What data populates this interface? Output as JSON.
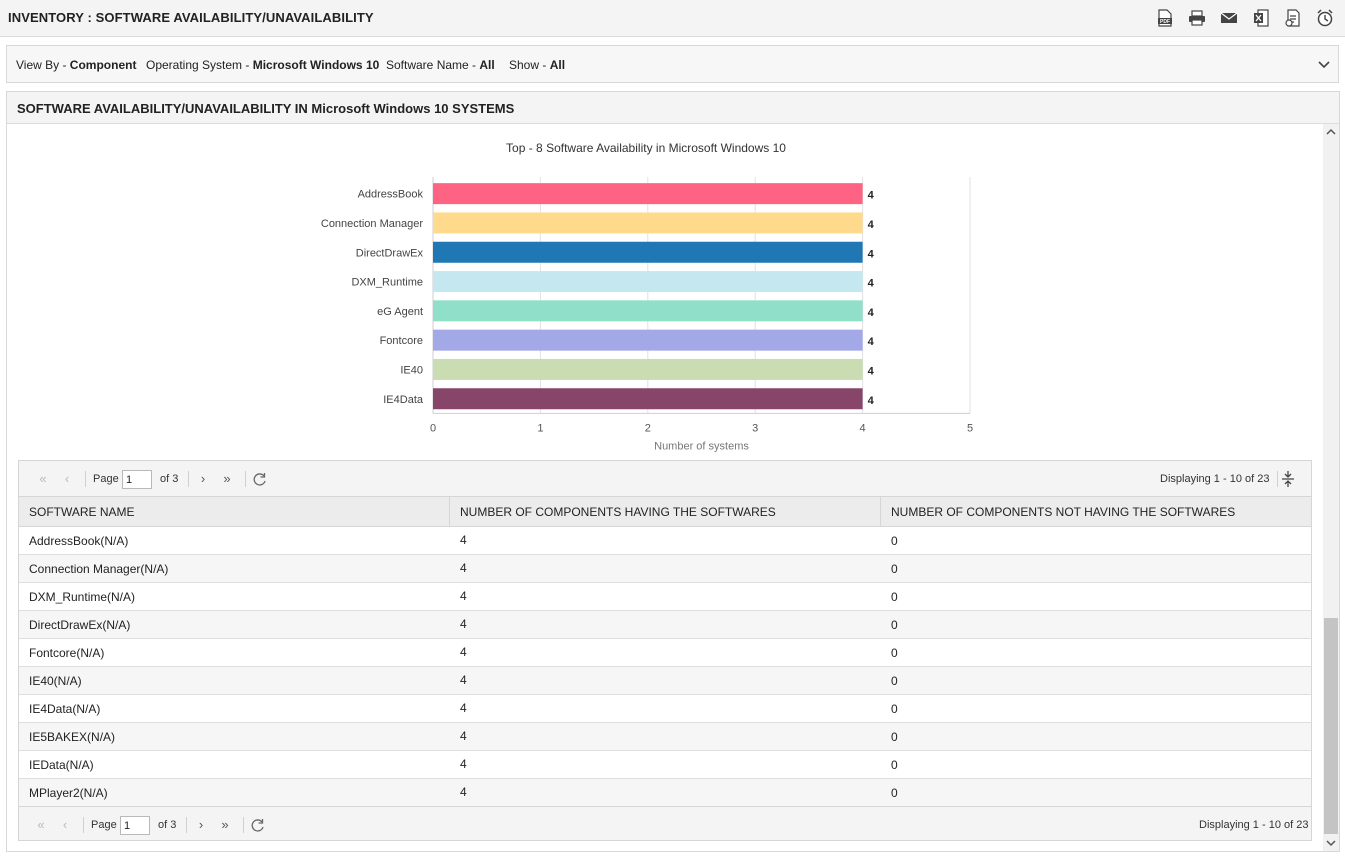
{
  "header": {
    "title": "INVENTORY : SOFTWARE AVAILABILITY/UNAVAILABILITY",
    "tools": [
      {
        "name": "pdf-icon",
        "label": "PDF"
      },
      {
        "name": "print-icon",
        "label": ""
      },
      {
        "name": "mail-icon",
        "label": ""
      },
      {
        "name": "excel-icon",
        "label": ""
      },
      {
        "name": "report-icon",
        "label": ""
      },
      {
        "name": "alarm-clock-icon",
        "label": ""
      }
    ]
  },
  "filters": {
    "view_by_label": "View By - ",
    "view_by_value": "Component",
    "os_label": "Operating System - ",
    "os_value": "Microsoft Windows 10",
    "software_label": "Software Name - ",
    "software_value": "All",
    "show_label": "Show - ",
    "show_value": "All"
  },
  "panel": {
    "title": "SOFTWARE AVAILABILITY/UNAVAILABILITY IN Microsoft Windows 10 SYSTEMS"
  },
  "chart_data": {
    "type": "bar",
    "orientation": "horizontal",
    "title": "Top - 8 Software Availability in Microsoft Windows 10",
    "xlabel": "Number of systems",
    "ylabel": "",
    "xlim": [
      0,
      5
    ],
    "xticks": [
      "0",
      "1",
      "2",
      "3",
      "4",
      "5"
    ],
    "categories": [
      "AddressBook",
      "Connection Manager",
      "DirectDrawEx",
      "DXM_Runtime",
      "eG Agent",
      "Fontcore",
      "IE40",
      "IE4Data"
    ],
    "values": [
      4,
      4,
      4,
      4,
      4,
      4,
      4,
      4
    ],
    "colors": [
      "#ff6384",
      "#ffd98c",
      "#1f77b4",
      "#c5e8f0",
      "#8fdfc9",
      "#a3a9e6",
      "#c9dcb2",
      "#874569"
    ],
    "grid": true
  },
  "pager": {
    "page_label": "Page",
    "page_value": "1",
    "of_label": "of 3",
    "display": "Displaying 1 - 10 of 23"
  },
  "table": {
    "columns": [
      "SOFTWARE NAME",
      "NUMBER OF COMPONENTS HAVING THE SOFTWARES",
      "NUMBER OF COMPONENTS NOT HAVING THE SOFTWARES"
    ],
    "rows": [
      [
        "AddressBook(N/A)",
        "4",
        "0"
      ],
      [
        "Connection Manager(N/A)",
        "4",
        "0"
      ],
      [
        "DXM_Runtime(N/A)",
        "4",
        "0"
      ],
      [
        "DirectDrawEx(N/A)",
        "4",
        "0"
      ],
      [
        "Fontcore(N/A)",
        "4",
        "0"
      ],
      [
        "IE40(N/A)",
        "4",
        "0"
      ],
      [
        "IE4Data(N/A)",
        "4",
        "0"
      ],
      [
        "IE5BAKEX(N/A)",
        "4",
        "0"
      ],
      [
        "IEData(N/A)",
        "4",
        "0"
      ],
      [
        "MPlayer2(N/A)",
        "4",
        "0"
      ]
    ]
  }
}
